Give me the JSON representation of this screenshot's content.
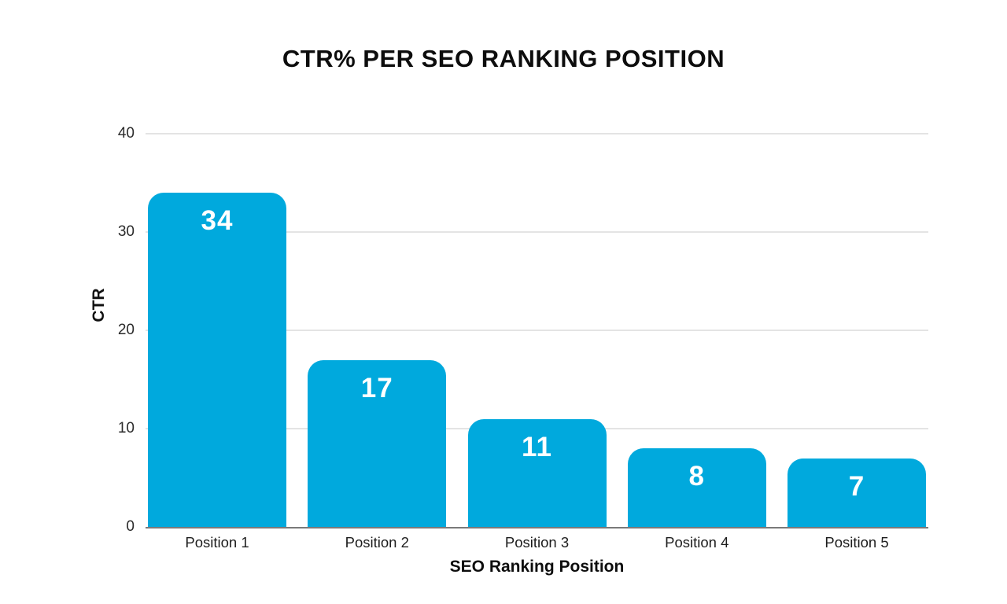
{
  "chart_data": {
    "type": "bar",
    "title": "CTR% PER SEO RANKING POSITION",
    "xlabel": "SEO Ranking Position",
    "ylabel": "CTR",
    "categories": [
      "Position 1",
      "Position 2",
      "Position 3",
      "Position 4",
      "Position 5"
    ],
    "values": [
      34,
      17,
      11,
      8,
      7
    ],
    "ylim": [
      0,
      40
    ],
    "yticks": [
      0,
      10,
      20,
      30,
      40
    ],
    "grid": true,
    "legend": false,
    "bar_color": "#00A9DD",
    "value_label_color": "#ffffff",
    "gridline_color": "#e4e4e4",
    "baseline_color": "#7a7a7a",
    "background_color": "#ffffff"
  }
}
